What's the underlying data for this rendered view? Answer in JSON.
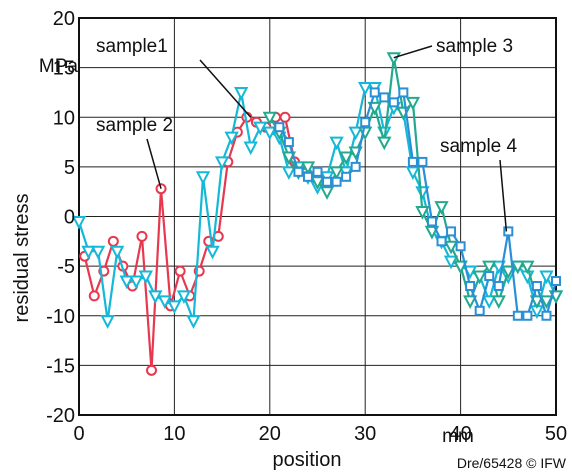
{
  "chart_data": {
    "type": "line",
    "ylabel": "residual stress",
    "yunit": "MPa",
    "xlabel": "position",
    "xunit": "mm",
    "xlim": [
      0,
      50
    ],
    "ylim": [
      -20,
      20
    ],
    "xticks": [
      0,
      10,
      20,
      30,
      40,
      50
    ],
    "yticks": [
      -20,
      -15,
      -10,
      -5,
      0,
      5,
      10,
      15,
      20
    ],
    "grid": true,
    "credit": "Dre/65428 © IFW",
    "series": [
      {
        "name": "sample 2",
        "color": "#e8384f",
        "marker": "circle",
        "x": [
          0.6,
          1.6,
          2.6,
          3.6,
          4.6,
          5.6,
          6.6,
          7.6,
          8.6,
          9.6,
          10.6,
          11.6,
          12.6,
          13.6,
          14.6,
          15.6,
          16.6,
          17.6,
          18.6,
          19.6,
          20.6,
          21.6,
          22.6
        ],
        "y": [
          -4,
          -8,
          -5.5,
          -2.5,
          -5,
          -7,
          -2,
          -15.5,
          2.8,
          -9,
          -5.5,
          -8,
          -5.5,
          -2.5,
          -2,
          5.5,
          8.5,
          10,
          9.5,
          9,
          10,
          10,
          5.5
        ]
      },
      {
        "name": "sample1",
        "color": "#14b8d8",
        "marker": "triangle-down",
        "x": [
          0,
          1,
          2,
          3,
          4,
          5,
          6,
          7,
          8,
          9,
          10,
          11,
          12,
          13,
          14,
          15,
          16,
          17,
          18,
          19,
          20,
          21,
          22,
          23,
          24,
          25,
          26,
          27,
          28,
          29,
          30,
          31,
          32,
          33,
          34,
          35,
          36,
          37,
          38,
          39,
          40,
          41,
          42,
          43,
          44,
          45,
          46,
          47,
          48,
          49,
          50
        ],
        "y": [
          -0.5,
          -3.5,
          -3.5,
          -10.5,
          -3.5,
          -6.5,
          -6.5,
          -6,
          -8,
          -8.5,
          -9,
          -8,
          -10.5,
          4,
          -3.5,
          5.5,
          8,
          12.5,
          7,
          9,
          8.5,
          8,
          4.5,
          5,
          4,
          3,
          4,
          7.5,
          4.5,
          8.5,
          13,
          13,
          8.5,
          11,
          10.5,
          4.5,
          2.5,
          -1.5,
          -2.5,
          -4.5,
          -5,
          -5.5,
          -6,
          -8.5,
          -5,
          -6,
          -5,
          -6,
          -9.5,
          -6,
          -8
        ]
      },
      {
        "name": "sample 3",
        "color": "#22a98e",
        "marker": "triangle-down",
        "x": [
          20,
          21,
          22,
          23,
          24,
          25,
          26,
          27,
          28,
          29,
          30,
          31,
          32,
          33,
          34,
          35,
          36,
          37,
          38,
          39,
          40,
          41,
          42,
          43,
          44,
          45,
          46,
          47,
          48,
          49,
          50
        ],
        "y": [
          10,
          8.5,
          6,
          4.5,
          5,
          3.5,
          2.5,
          4.5,
          6,
          6.5,
          8.5,
          11,
          7.5,
          16,
          10.5,
          11.5,
          0.5,
          -1.5,
          1,
          -3,
          -5,
          -8.5,
          -6,
          -5,
          -8.5,
          -5.5,
          -5,
          -5,
          -8.5,
          -8.5,
          -8
        ]
      },
      {
        "name": "sample 4",
        "color": "#2a90d6",
        "marker": "square",
        "x": [
          21,
          22,
          23,
          24,
          25,
          26,
          27,
          28,
          29,
          30,
          31,
          32,
          33,
          34,
          35,
          36,
          37,
          38,
          39,
          40,
          41,
          42,
          43,
          44,
          45,
          46,
          47,
          48,
          49,
          50
        ],
        "y": [
          9,
          7.5,
          4.5,
          4,
          4.5,
          3.5,
          3.5,
          4,
          5,
          9.5,
          12.5,
          12,
          11.5,
          12.5,
          5.5,
          5.5,
          -0.5,
          -2.5,
          -1.5,
          -3,
          -7,
          -9.5,
          -6,
          -7,
          -1.5,
          -10,
          -10,
          -7,
          -10,
          -6.5
        ]
      }
    ],
    "annotations": [
      {
        "text": "sample1",
        "target_series": 1
      },
      {
        "text": "sample 2",
        "target_series": 0
      },
      {
        "text": "sample 3",
        "target_series": 2
      },
      {
        "text": "sample 4",
        "target_series": 3
      }
    ]
  }
}
